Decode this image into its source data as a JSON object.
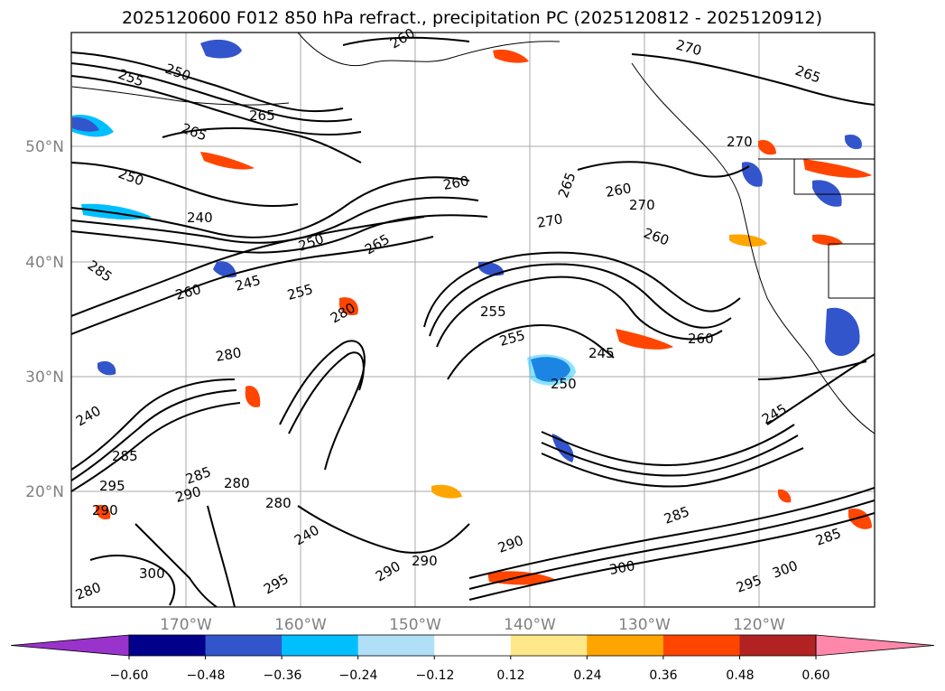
{
  "title": "2025120600 F012 850 hPa refract., precipitation PC (2025120812 - 2025120912)",
  "map": {
    "lon_labels": [
      "170°W",
      "160°W",
      "150°W",
      "140°W",
      "130°W",
      "120°W"
    ],
    "lat_labels": [
      "50°N",
      "40°N",
      "30°N",
      "20°N"
    ],
    "contour_labels": [
      "255",
      "250",
      "265",
      "265",
      "260",
      "270",
      "265",
      "250",
      "240",
      "260",
      "265",
      "270",
      "255",
      "260",
      "260",
      "270",
      "270",
      "250",
      "265",
      "285",
      "245",
      "260",
      "255",
      "280",
      "280",
      "255",
      "245",
      "250",
      "260",
      "245",
      "240",
      "295",
      "285",
      "290",
      "280",
      "280",
      "290",
      "285",
      "290",
      "295",
      "300",
      "280",
      "285",
      "300",
      "295",
      "290",
      "285",
      "300",
      "290",
      "240"
    ]
  },
  "colorbar": {
    "ticks": [
      "−0.60",
      "−0.48",
      "−0.36",
      "−0.24",
      "−0.12",
      "0.12",
      "0.24",
      "0.36",
      "0.48",
      "0.60"
    ],
    "colors": [
      "#9933cc",
      "#00008b",
      "#3355cc",
      "#00bfff",
      "#b0e0f8",
      "#ffffff",
      "#ffe88a",
      "#ffa500",
      "#ff4500",
      "#b22222",
      "#ff88aa"
    ]
  }
}
